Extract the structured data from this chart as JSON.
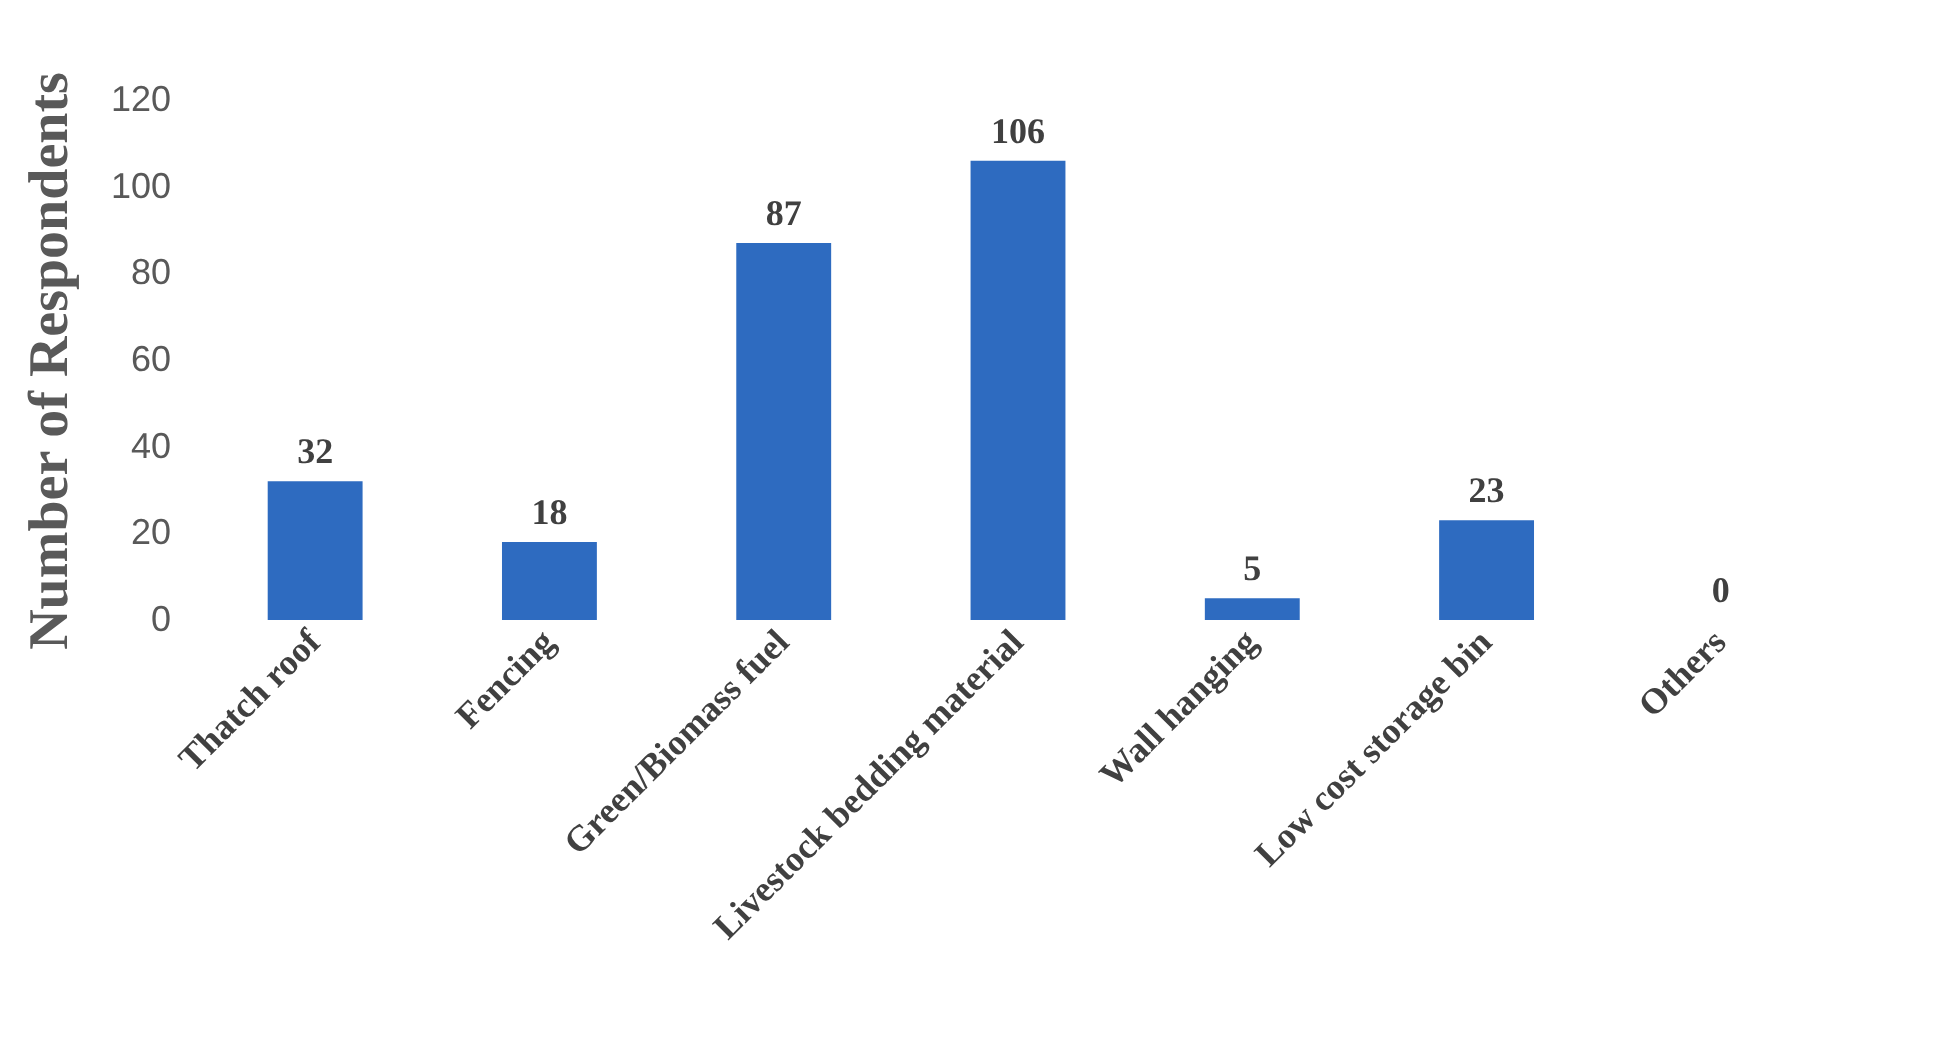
{
  "chart_data": {
    "type": "bar",
    "ylabel": "Number of Respondents",
    "categories": [
      "Thatch roof",
      "Fencing",
      "Green/Biomass fuel",
      "Livestock bedding material",
      "Wall hanging",
      "Low cost storage bin",
      "Others"
    ],
    "values": [
      32,
      18,
      87,
      106,
      5,
      23,
      0
    ],
    "color": "#2e6bc0",
    "ylim": [
      0,
      120
    ],
    "yticks": [
      0,
      20,
      40,
      60,
      80,
      100,
      120
    ],
    "grid": false,
    "data_labels": true
  }
}
